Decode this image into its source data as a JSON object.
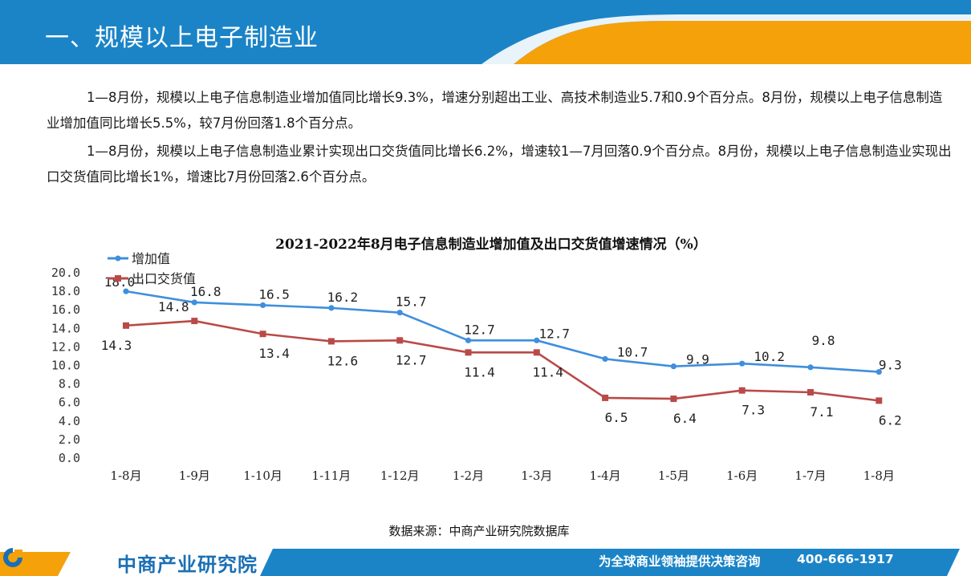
{
  "header": {
    "title": "一、规模以上电子制造业"
  },
  "paragraphs": [
    "1—8月份，规模以上电子信息制造业增加值同比增长9.3%，增速分别超出工业、高技术制造业5.7和0.9个百分点。8月份，规模以上电子信息制造业增加值同比增长5.5%，较7月份回落1.8个百分点。",
    "1—8月份，规模以上电子信息制造业累计实现出口交货值同比增长6.2%，增速较1—7月回落0.9个百分点。8月份，规模以上电子信息制造业实现出口交货值同比增长1%，增速比7月份回落2.6个百分点。"
  ],
  "chart_data": {
    "type": "line",
    "title": "2021-2022年8月电子信息制造业增加值及出口交货值增速情况（%）",
    "categories": [
      "1-8月",
      "1-9月",
      "1-10月",
      "1-11月",
      "1-12月",
      "1-2月",
      "1-3月",
      "1-4月",
      "1-5月",
      "1-6月",
      "1-7月",
      "1-8月"
    ],
    "ylim": [
      0,
      20
    ],
    "yticks": [
      "0.0",
      "2.0",
      "4.0",
      "6.0",
      "8.0",
      "10.0",
      "12.0",
      "14.0",
      "16.0",
      "18.0",
      "20.0"
    ],
    "legend_position": "top-left",
    "grid": false,
    "series": [
      {
        "name": "增加值",
        "color": "#3f8fdc",
        "marker": "circle",
        "values": [
          18.0,
          16.8,
          16.5,
          16.2,
          15.7,
          12.7,
          12.7,
          10.7,
          9.9,
          10.2,
          9.8,
          9.3
        ],
        "labels": [
          "18.0",
          "16.8",
          "16.5",
          "16.2",
          "15.7",
          "12.7",
          "12.7",
          "10.7",
          "9.9",
          "10.2",
          "9.8",
          "9.3"
        ]
      },
      {
        "name": "出口交货值",
        "color": "#b94a48",
        "marker": "square",
        "values": [
          14.3,
          14.8,
          13.4,
          12.6,
          12.7,
          11.4,
          11.4,
          6.5,
          6.4,
          7.3,
          7.1,
          6.2
        ],
        "labels": [
          "14.3",
          "14.8",
          "13.4",
          "12.6",
          "12.7",
          "11.4",
          "11.4",
          "6.5",
          "6.4",
          "7.3",
          "7.1",
          "6.2"
        ]
      }
    ]
  },
  "source": "数据来源：中商产业研究院数据库",
  "footer": {
    "logo": "中商产业研究院",
    "slogan": "为全球商业领袖提供决策咨询",
    "phone": "400-666-1917"
  },
  "colors": {
    "header_blue": "#1b84c7",
    "accent_orange": "#f5a10a",
    "footer_blue": "#1b84c7"
  }
}
